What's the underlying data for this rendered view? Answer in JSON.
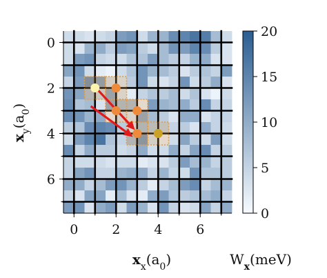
{
  "chart_data": {
    "type": "heatmap",
    "xlabel": {
      "symbol": "x",
      "subscript": "x",
      "unit": "(a",
      "unit_sub": "0",
      "close": ")"
    },
    "ylabel": {
      "symbol": "x",
      "subscript": "y",
      "unit": "(a",
      "unit_sub": "0",
      "close": ")"
    },
    "colorbar": {
      "label": {
        "symbol": "W",
        "subscript": "x",
        "unit": "(meV)"
      },
      "range": [
        0,
        20
      ],
      "ticks": [
        0,
        5,
        10,
        15,
        20
      ],
      "colormap": "Blues",
      "color_low": "#f7fbff",
      "color_high": "#2b5d92"
    },
    "x_ticks": [
      0,
      2,
      4,
      6
    ],
    "y_ticks": [
      0,
      2,
      4,
      6
    ],
    "xlim": [
      -0.5,
      7.5
    ],
    "ylim": [
      7.5,
      -0.5
    ],
    "heat_values": [
      [
        4,
        4,
        3,
        4,
        5,
        12,
        13,
        4,
        9,
        9,
        14,
        15,
        17,
        16,
        8,
        4
      ],
      [
        4,
        3,
        9,
        10,
        6,
        12,
        11,
        6,
        4,
        8,
        13,
        12,
        15,
        14,
        6,
        3
      ],
      [
        4,
        12,
        13,
        5,
        4,
        4,
        7,
        7,
        12,
        8,
        6,
        5,
        9,
        10,
        3,
        3
      ],
      [
        11,
        13,
        4,
        2,
        1,
        4,
        7,
        13,
        9,
        8,
        6,
        3,
        6,
        7,
        5,
        12
      ],
      [
        5,
        12,
        14,
        12,
        4,
        3,
        6,
        13,
        4,
        3,
        5,
        13,
        4,
        6,
        10,
        3
      ],
      [
        13,
        11,
        8,
        5,
        11,
        3,
        2,
        5,
        7,
        6,
        8,
        4,
        7,
        3,
        1,
        4
      ],
      [
        14,
        7,
        8,
        3,
        11,
        8,
        8,
        2,
        12,
        9,
        8,
        10,
        6,
        14,
        5,
        5
      ],
      [
        14,
        13,
        9,
        10,
        2,
        4,
        3,
        11,
        8,
        6,
        3,
        10,
        10,
        3,
        5,
        5
      ],
      [
        6,
        7,
        14,
        15,
        14,
        6,
        3,
        8,
        7,
        6,
        5,
        6,
        3,
        10,
        5,
        4
      ],
      [
        4,
        12,
        15,
        17,
        7,
        5,
        8,
        13,
        4,
        2,
        4,
        11,
        6,
        4,
        12,
        4
      ],
      [
        14,
        5,
        10,
        6,
        6,
        4,
        5,
        10,
        4,
        4,
        10,
        5,
        11,
        14,
        5,
        6
      ],
      [
        5,
        4,
        4,
        4,
        3,
        4,
        4,
        2,
        3,
        3,
        6,
        12,
        8,
        9,
        5,
        6
      ],
      [
        5,
        11,
        13,
        5,
        5,
        9,
        10,
        10,
        5,
        9,
        5,
        4,
        13,
        7,
        7,
        6
      ],
      [
        10,
        10,
        5,
        8,
        12,
        13,
        9,
        6,
        2,
        5,
        8,
        12,
        14,
        5,
        8,
        9
      ],
      [
        5,
        3,
        11,
        11,
        2,
        8,
        3,
        2,
        10,
        12,
        7,
        6,
        7,
        8,
        10,
        5
      ],
      [
        12,
        13,
        3,
        10,
        12,
        4,
        12,
        9,
        3,
        13,
        5,
        3,
        4,
        11,
        5,
        10
      ]
    ],
    "grid": {
      "lines_at": [
        0,
        1,
        2,
        3,
        4,
        5,
        6,
        7
      ],
      "color": "#000000",
      "extent": [
        -0.5,
        7.5
      ]
    },
    "highlight_boxes": [
      {
        "x_range": [
          0.5,
          1.5
        ],
        "y_range": [
          1.5,
          2.5
        ]
      },
      {
        "x_range": [
          1.5,
          2.5
        ],
        "y_range": [
          1.5,
          2.5
        ]
      },
      {
        "x_range": [
          1.5,
          2.5
        ],
        "y_range": [
          2.5,
          3.5
        ]
      },
      {
        "x_range": [
          2.5,
          3.5
        ],
        "y_range": [
          2.5,
          3.5
        ]
      },
      {
        "x_range": [
          2.5,
          3.5
        ],
        "y_range": [
          3.5,
          4.5
        ]
      },
      {
        "x_range": [
          3.5,
          4.5
        ],
        "y_range": [
          3.5,
          4.5
        ]
      }
    ],
    "points": [
      {
        "x": 1,
        "y": 2,
        "color": "#fff3b0"
      },
      {
        "x": 2,
        "y": 2,
        "color": "#ee8a3c"
      },
      {
        "x": 2,
        "y": 3,
        "color": "#ee8a3c"
      },
      {
        "x": 3,
        "y": 3,
        "color": "#ee8a3c"
      },
      {
        "x": 3,
        "y": 4,
        "color": "#ee8a3c"
      },
      {
        "x": 4,
        "y": 4,
        "color": "#c9a227"
      }
    ],
    "arrows": [
      {
        "from": [
          1.1,
          2.05
        ],
        "to": [
          2.9,
          3.85
        ]
      },
      {
        "from": [
          0.8,
          2.8
        ],
        "to": [
          2.8,
          4.15
        ]
      }
    ],
    "colors": {
      "highlight": "#e99a3b",
      "arrow": "#e31a1c"
    }
  }
}
